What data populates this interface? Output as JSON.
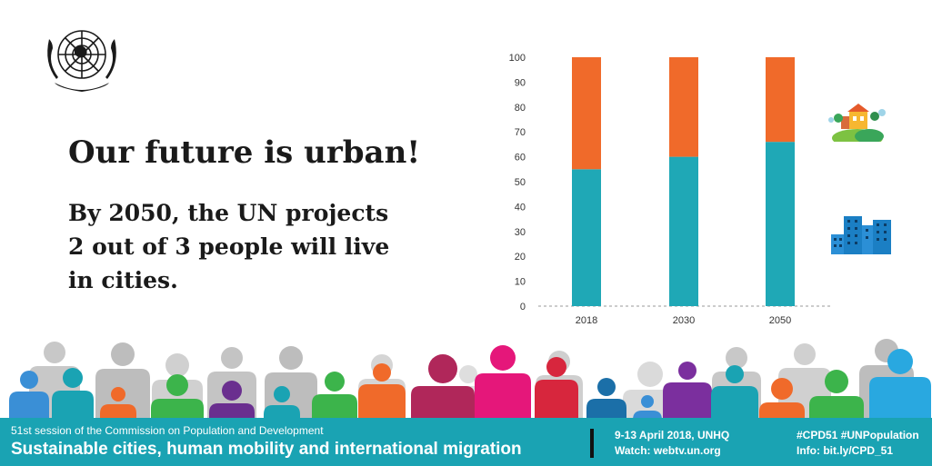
{
  "headline": "Our future is urban!",
  "subtext": [
    "By 2050, the UN projects",
    "2 out of 3 people will live",
    "in cities."
  ],
  "chart_data": {
    "type": "bar",
    "stacked": true,
    "categories": [
      "2018",
      "2030",
      "2050"
    ],
    "series": [
      {
        "values": [
          55,
          60,
          66
        ],
        "color": "#1fa8b6"
      },
      {
        "values": [
          45,
          40,
          34
        ],
        "color": "#f06a2a"
      }
    ],
    "ylim": [
      0,
      100
    ],
    "yticks": [
      0,
      10,
      20,
      30,
      40,
      50,
      60,
      70,
      80,
      90,
      100
    ],
    "grid": false
  },
  "icons": {
    "emblem": "un-emblem-icon",
    "rural": "rural-village-icon",
    "urban": "city-buildings-icon"
  },
  "footer": {
    "session": "51st session of the Commission on Population and Development",
    "theme": "Sustainable cities, human mobility and international migration",
    "dates": "9-13 April 2018, UNHQ",
    "watch": "Watch: webtv.un.org",
    "hashtags": "#CPD51 #UNPopulation",
    "info": "Info: bit.ly/CPD_51"
  },
  "colors": {
    "footer_bg": "#1aa3b3",
    "urban": "#1fa8b6",
    "rural": "#f06a2a"
  }
}
